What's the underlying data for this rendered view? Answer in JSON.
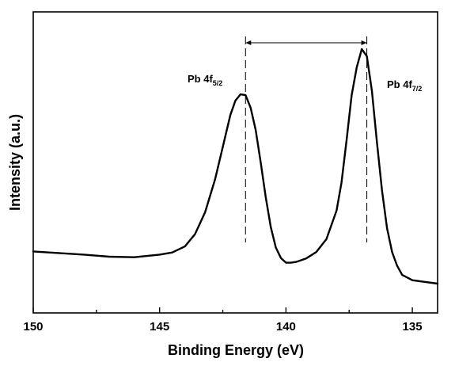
{
  "chart_data": {
    "type": "line",
    "title": "",
    "xlabel": "Binding Energy (eV)",
    "ylabel": "Intensity (a.u.)",
    "xlim": [
      150,
      134
    ],
    "x_reversed": true,
    "ylim": [
      0,
      1
    ],
    "x_ticks": [
      150,
      145,
      140,
      135
    ],
    "x_tick_labels": [
      "150",
      "145",
      "140",
      "135"
    ],
    "y_tick_labels": false,
    "grid": false,
    "legend": "none",
    "line_color": "#000000",
    "series": [
      {
        "x": [
          150,
          149,
          148,
          147,
          146,
          145,
          144.5,
          144,
          143.6,
          143.2,
          142.8,
          142.4,
          142.2,
          142,
          141.8,
          141.6,
          141.4,
          141.2,
          141,
          140.8,
          140.6,
          140.4,
          140.2,
          140,
          139.8,
          139.6,
          139.2,
          138.8,
          138.4,
          138,
          137.8,
          137.6,
          137.4,
          137.2,
          137,
          136.8,
          136.6,
          136.4,
          136.2,
          136,
          135.8,
          135.6,
          135.4,
          135,
          134.6,
          134
        ],
        "y": [
          0.195,
          0.189,
          0.183,
          0.175,
          0.173,
          0.183,
          0.191,
          0.214,
          0.261,
          0.345,
          0.472,
          0.635,
          0.717,
          0.772,
          0.796,
          0.793,
          0.745,
          0.66,
          0.537,
          0.403,
          0.288,
          0.21,
          0.17,
          0.152,
          0.152,
          0.155,
          0.168,
          0.193,
          0.242,
          0.351,
          0.459,
          0.621,
          0.793,
          0.899,
          0.969,
          0.942,
          0.809,
          0.614,
          0.43,
          0.284,
          0.193,
          0.14,
          0.105,
          0.085,
          0.08,
          0.072
        ]
      }
    ],
    "annotations": [
      {
        "label": "Pb 4f",
        "subscript": "5/2",
        "x": 141.6
      },
      {
        "label": "Pb 4f",
        "subscript": "7/2",
        "x": 136.8
      }
    ],
    "spacing_arrow": {
      "from": 141.6,
      "to": 136.8
    }
  }
}
